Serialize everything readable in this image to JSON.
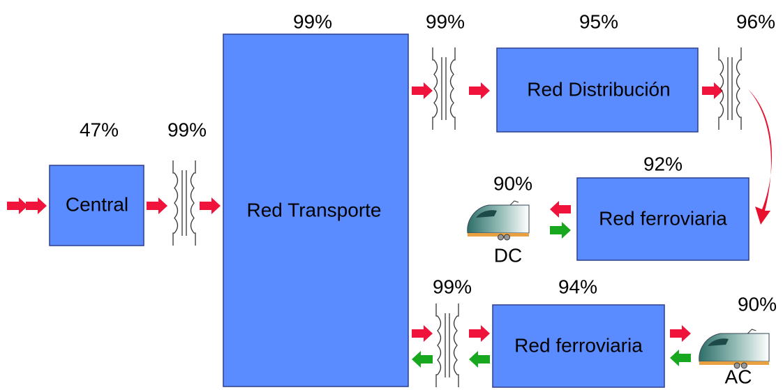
{
  "nodes": [
    {
      "label": "Central",
      "efficiency": "47%"
    },
    {
      "label": "Red Transporte",
      "efficiency": "99%"
    },
    {
      "label": "Red Distribución",
      "efficiency": "95%"
    },
    {
      "label": "Red ferroviaria",
      "efficiency": "92%"
    },
    {
      "label": "Red ferroviaria",
      "efficiency": "94%"
    }
  ],
  "transformers": [
    {
      "efficiency": "99%"
    },
    {
      "efficiency": "99%"
    },
    {
      "efficiency": "96%"
    },
    {
      "efficiency": "99%"
    }
  ],
  "trains": [
    {
      "label": "DC",
      "efficiency": "90%"
    },
    {
      "label": "AC",
      "efficiency": "90%"
    }
  ]
}
